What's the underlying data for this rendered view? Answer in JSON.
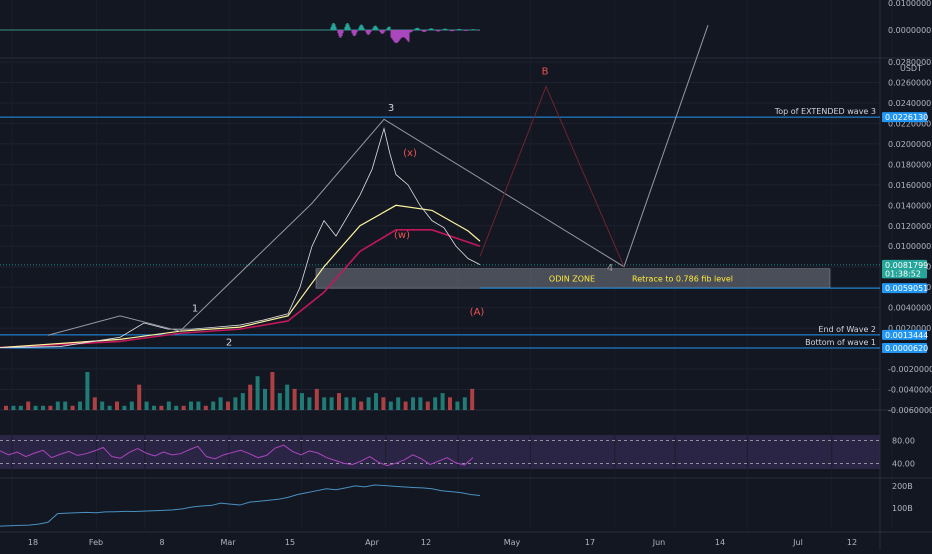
{
  "chart_data": {
    "type": "line",
    "symbol_currency": "USDT",
    "price_axis_ticks": [
      "0.0280000",
      "0.0260000",
      "0.0240000",
      "0.0220000",
      "0.0200000",
      "0.0180000",
      "0.0160000",
      "0.0140000",
      "0.0120000",
      "0.0100000",
      "0.0080000",
      "0.0060000",
      "0.0040000",
      "0.0020000",
      "-0.0020000",
      "-0.0040000",
      "-0.0060000"
    ],
    "price_axis_tick_values": [
      0.028,
      0.026,
      0.024,
      0.022,
      0.02,
      0.018,
      0.016,
      0.014,
      0.012,
      0.01,
      0.008,
      0.006,
      0.004,
      0.002,
      -0.002,
      -0.004,
      -0.006
    ],
    "top_panel_ticks": [
      "0.0100000",
      "0.0000000"
    ],
    "rsi_ticks": [
      "80.00",
      "40.00"
    ],
    "bottom_panel_ticks": [
      "200B",
      "100B"
    ],
    "x_axis_ticks": [
      "18",
      "Feb",
      "8",
      "Mar",
      "15",
      "Apr",
      "12",
      "May",
      "17",
      "Jun",
      "14",
      "Jul",
      "12"
    ],
    "price_tags": [
      {
        "label": "0.0226130",
        "value": 0.022613,
        "color": "#2196f3"
      },
      {
        "label": "0.0081799",
        "value": 0.00818,
        "color": "#26a69a"
      },
      {
        "label": "01:38:52",
        "value": 0.00735,
        "color": "#26a69a"
      },
      {
        "label": "0.0059051",
        "value": 0.005905,
        "color": "#2196f3"
      },
      {
        "label": "0.0013444",
        "value": 0.001344,
        "color": "#2196f3"
      },
      {
        "label": "0.0000620",
        "value": 6.2e-05,
        "color": "#2196f3"
      }
    ],
    "horizontal_levels": [
      {
        "label": "Top of EXTENDED wave 3",
        "value": 0.022613
      },
      {
        "label": "End of Wave 2",
        "value": 0.001344
      },
      {
        "label": "Bottom of wave 1",
        "value": 6.2e-05
      }
    ],
    "zone": {
      "label": "ODIN ZONE",
      "note": "Retrace to 0.786 fib level",
      "low": 0.0059,
      "high": 0.0078
    },
    "wave_labels": [
      "1",
      "2",
      "3",
      "B",
      "4",
      "(x)",
      "(w)",
      "(A)"
    ],
    "elliott_path": [
      {
        "t": 8,
        "v": 0.0013
      },
      {
        "t": 20,
        "v": 0.0032
      },
      {
        "t": 30,
        "v": 0.0017
      },
      {
        "t": 52,
        "v": 0.0142
      },
      {
        "t": 64,
        "v": 0.0224
      },
      {
        "t": 104,
        "v": 0.008
      },
      {
        "t": 118,
        "v": 0.0316
      }
    ],
    "projection_path": [
      {
        "t": 80,
        "v": 0.009
      },
      {
        "t": 91,
        "v": 0.0256
      },
      {
        "t": 104,
        "v": 0.008
      }
    ],
    "wave1_peak": {
      "t": 30,
      "v": 0.0028
    },
    "price_series": [
      {
        "t": 0,
        "v": 0.0001
      },
      {
        "t": 10,
        "v": 0.0002
      },
      {
        "t": 20,
        "v": 0.0011
      },
      {
        "t": 24,
        "v": 0.0025
      },
      {
        "t": 28,
        "v": 0.0019
      },
      {
        "t": 32,
        "v": 0.0019
      },
      {
        "t": 36,
        "v": 0.0021
      },
      {
        "t": 40,
        "v": 0.0023
      },
      {
        "t": 44,
        "v": 0.0028
      },
      {
        "t": 48,
        "v": 0.0034
      },
      {
        "t": 50,
        "v": 0.006
      },
      {
        "t": 52,
        "v": 0.01
      },
      {
        "t": 54,
        "v": 0.0125
      },
      {
        "t": 56,
        "v": 0.011
      },
      {
        "t": 58,
        "v": 0.013
      },
      {
        "t": 60,
        "v": 0.015
      },
      {
        "t": 62,
        "v": 0.0175
      },
      {
        "t": 64,
        "v": 0.0215
      },
      {
        "t": 65,
        "v": 0.019
      },
      {
        "t": 66,
        "v": 0.017
      },
      {
        "t": 68,
        "v": 0.016
      },
      {
        "t": 70,
        "v": 0.014
      },
      {
        "t": 72,
        "v": 0.0125
      },
      {
        "t": 74,
        "v": 0.0118
      },
      {
        "t": 76,
        "v": 0.01
      },
      {
        "t": 78,
        "v": 0.0088
      },
      {
        "t": 80,
        "v": 0.0082
      }
    ],
    "ma_yellow": [
      {
        "t": 0,
        "v": 0.0001
      },
      {
        "t": 20,
        "v": 0.0009
      },
      {
        "t": 30,
        "v": 0.0017
      },
      {
        "t": 40,
        "v": 0.0021
      },
      {
        "t": 48,
        "v": 0.0032
      },
      {
        "t": 54,
        "v": 0.008
      },
      {
        "t": 60,
        "v": 0.012
      },
      {
        "t": 66,
        "v": 0.014
      },
      {
        "t": 72,
        "v": 0.0135
      },
      {
        "t": 78,
        "v": 0.0115
      },
      {
        "t": 80,
        "v": 0.0105
      }
    ],
    "ma_pink": [
      {
        "t": 0,
        "v": 0.0001
      },
      {
        "t": 20,
        "v": 0.0007
      },
      {
        "t": 30,
        "v": 0.0015
      },
      {
        "t": 40,
        "v": 0.0019
      },
      {
        "t": 48,
        "v": 0.0027
      },
      {
        "t": 54,
        "v": 0.0055
      },
      {
        "t": 60,
        "v": 0.0095
      },
      {
        "t": 66,
        "v": 0.0116
      },
      {
        "t": 72,
        "v": 0.0116
      },
      {
        "t": 78,
        "v": 0.0104
      },
      {
        "t": 80,
        "v": 0.01
      }
    ],
    "volume_bars": [
      1,
      1,
      1,
      2,
      1,
      1,
      1,
      2,
      2,
      1,
      2,
      9,
      3,
      2,
      1,
      2,
      1,
      2,
      6,
      2,
      1,
      1,
      2,
      1,
      1,
      2,
      2,
      1,
      2,
      3,
      2,
      3,
      4,
      6,
      8,
      5,
      9,
      4,
      6,
      5,
      4,
      3,
      5,
      3,
      3,
      4,
      3,
      3,
      2,
      3,
      4,
      3,
      2,
      3,
      2,
      3,
      3,
      2,
      3,
      4,
      3,
      2,
      3,
      5
    ],
    "rsi_series": [
      62,
      55,
      60,
      52,
      58,
      63,
      50,
      56,
      61,
      54,
      57,
      62,
      68,
      52,
      49,
      59,
      66,
      58,
      53,
      60,
      55,
      57,
      64,
      70,
      52,
      48,
      55,
      59,
      63,
      57,
      50,
      54,
      67,
      72,
      61,
      55,
      62,
      58,
      50,
      45,
      40,
      38,
      44,
      52,
      42,
      36,
      40,
      46,
      55,
      48,
      38,
      44,
      50,
      41,
      37,
      50
    ],
    "bottom_series": [
      10,
      12,
      14,
      15,
      20,
      30,
      75,
      78,
      80,
      82,
      80,
      84,
      85,
      87,
      86,
      88,
      90,
      92,
      95,
      100,
      110,
      115,
      118,
      130,
      125,
      120,
      135,
      140,
      145,
      150,
      160,
      175,
      185,
      195,
      205,
      200,
      210,
      220,
      215,
      225,
      222,
      218,
      215,
      212,
      210,
      205,
      195,
      190,
      185,
      175,
      170
    ]
  }
}
